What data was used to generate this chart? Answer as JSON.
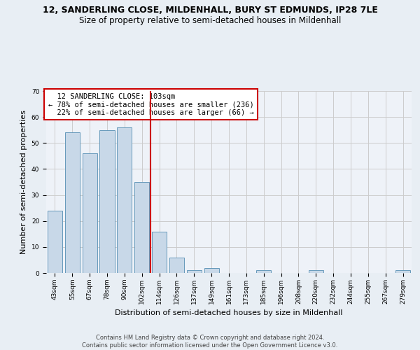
{
  "title": "12, SANDERLING CLOSE, MILDENHALL, BURY ST EDMUNDS, IP28 7LE",
  "subtitle": "Size of property relative to semi-detached houses in Mildenhall",
  "xlabel": "Distribution of semi-detached houses by size in Mildenhall",
  "ylabel": "Number of semi-detached properties",
  "categories": [
    "43sqm",
    "55sqm",
    "67sqm",
    "78sqm",
    "90sqm",
    "102sqm",
    "114sqm",
    "126sqm",
    "137sqm",
    "149sqm",
    "161sqm",
    "173sqm",
    "185sqm",
    "196sqm",
    "208sqm",
    "220sqm",
    "232sqm",
    "244sqm",
    "255sqm",
    "267sqm",
    "279sqm"
  ],
  "values": [
    24,
    54,
    46,
    55,
    56,
    35,
    16,
    6,
    1,
    2,
    0,
    0,
    1,
    0,
    0,
    1,
    0,
    0,
    0,
    0,
    1
  ],
  "bar_color": "#c8d8e8",
  "bar_edge_color": "#6699bb",
  "highlight_index": 5,
  "highlight_line_color": "#cc0000",
  "highlight_label": "12 SANDERLING CLOSE: 103sqm",
  "pct_smaller": "78% of semi-detached houses are smaller (236)",
  "pct_larger": "22% of semi-detached houses are larger (66)",
  "ylim": [
    0,
    70
  ],
  "yticks": [
    0,
    10,
    20,
    30,
    40,
    50,
    60,
    70
  ],
  "grid_color": "#cccccc",
  "bg_color": "#e8eef4",
  "plot_bg_color": "#eef2f8",
  "footer": "Contains HM Land Registry data © Crown copyright and database right 2024.\nContains public sector information licensed under the Open Government Licence v3.0.",
  "title_fontsize": 9,
  "subtitle_fontsize": 8.5,
  "xlabel_fontsize": 8,
  "ylabel_fontsize": 8,
  "tick_fontsize": 6.5,
  "annotation_fontsize": 7.5,
  "footer_fontsize": 6
}
